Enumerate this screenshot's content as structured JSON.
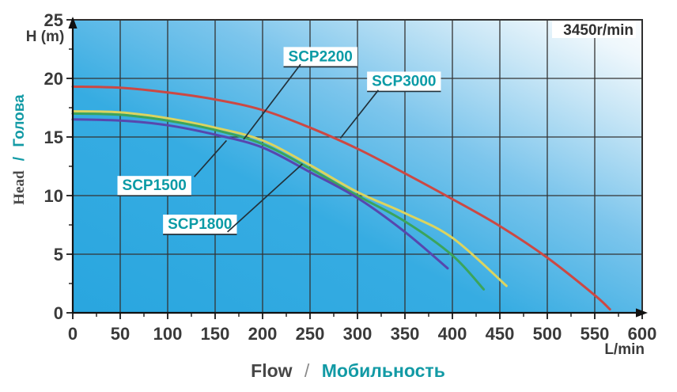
{
  "chart_data": {
    "type": "line",
    "title": "",
    "speed_label": "3450r/min",
    "x_axis": {
      "label_en": "Flow",
      "label_sep": "/",
      "label_ru": "Мобильность",
      "unit": "L/min",
      "lim": [
        0,
        600
      ],
      "ticks": [
        0,
        50,
        100,
        150,
        200,
        250,
        300,
        350,
        400,
        450,
        500,
        550,
        600
      ],
      "minor_step": 25
    },
    "y_axis": {
      "label_en": "Head",
      "label_sep": "/",
      "label_ru": "Голова",
      "unit": "H (m)",
      "lim": [
        0,
        25
      ],
      "ticks": [
        0,
        5,
        10,
        15,
        20,
        25
      ],
      "minor_step": 2.5
    },
    "grid": "major-only",
    "legend": "none",
    "series": [
      {
        "name": "SCP3000",
        "color": "#cc4843",
        "points": [
          [
            0,
            19.3
          ],
          [
            50,
            19.2
          ],
          [
            100,
            18.8
          ],
          [
            150,
            18.2
          ],
          [
            200,
            17.3
          ],
          [
            250,
            15.8
          ],
          [
            300,
            14.0
          ],
          [
            350,
            11.9
          ],
          [
            400,
            9.7
          ],
          [
            450,
            7.4
          ],
          [
            500,
            4.7
          ],
          [
            550,
            1.5
          ],
          [
            566,
            0.3
          ]
        ]
      },
      {
        "name": "SCP2200",
        "color": "#dcd45f",
        "points": [
          [
            0,
            17.2
          ],
          [
            50,
            17.1
          ],
          [
            100,
            16.6
          ],
          [
            150,
            15.8
          ],
          [
            200,
            14.7
          ],
          [
            250,
            12.6
          ],
          [
            300,
            10.3
          ],
          [
            350,
            8.5
          ],
          [
            400,
            6.4
          ],
          [
            457,
            2.3
          ]
        ]
      },
      {
        "name": "SCP1800",
        "color": "#3ba45c",
        "points": [
          [
            0,
            17.0
          ],
          [
            50,
            16.9
          ],
          [
            100,
            16.4
          ],
          [
            150,
            15.6
          ],
          [
            200,
            14.4
          ],
          [
            250,
            12.3
          ],
          [
            300,
            10.0
          ],
          [
            350,
            7.8
          ],
          [
            400,
            4.9
          ],
          [
            433,
            2.0
          ]
        ]
      },
      {
        "name": "SCP1500",
        "color": "#5747ae",
        "points": [
          [
            0,
            16.5
          ],
          [
            50,
            16.4
          ],
          [
            100,
            16.0
          ],
          [
            150,
            15.2
          ],
          [
            200,
            14.1
          ],
          [
            250,
            12.0
          ],
          [
            300,
            9.8
          ],
          [
            350,
            6.9
          ],
          [
            395,
            3.8
          ]
        ]
      }
    ],
    "annotations": [
      {
        "label": "SCP1500",
        "pos": [
          86,
          10.9
        ],
        "leader": [
          [
            128,
            11.6
          ],
          [
            162,
            14.7
          ]
        ]
      },
      {
        "label": "SCP1800",
        "pos": [
          134,
          7.6
        ],
        "leader": [
          [
            163,
            6.9
          ],
          [
            242,
            12.7
          ]
        ]
      },
      {
        "label": "SCP2200",
        "pos": [
          261,
          21.9
        ],
        "leader": [
          [
            240,
            21.2
          ],
          [
            180,
            14.8
          ]
        ]
      },
      {
        "label": "SCP3000",
        "pos": [
          349,
          19.8
        ],
        "leader": [
          [
            322,
            19.0
          ],
          [
            282,
            14.9
          ]
        ]
      }
    ]
  },
  "colors": {
    "plot_gradient": [
      "#29a6df",
      "#36ace2",
      "#7cc5ec",
      "#c8e6f6",
      "#eef7fc",
      "#fbfdfe"
    ],
    "grid": "#333333",
    "axis": "#1a1a1a",
    "tick_label": "#3a3a3a",
    "series_label_text": "#0b9ba6",
    "series_label_bg": "#ffffff",
    "leader": "#22313a",
    "label_en": "#474747",
    "label_sep": "#8a8a8a",
    "label_ru": "#129aa5",
    "speed_label": "#2f2f2f"
  }
}
